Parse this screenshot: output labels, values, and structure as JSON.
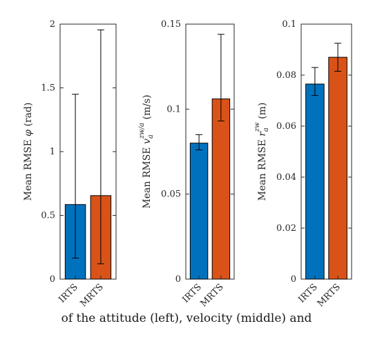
{
  "chart_data": [
    {
      "type": "bar",
      "categories": [
        "IRTS",
        "MRTS"
      ],
      "values": [
        0.585,
        0.655
      ],
      "error_low": [
        0.165,
        0.12
      ],
      "error_high": [
        1.45,
        1.955
      ],
      "ylim": [
        0,
        2
      ],
      "yticks": [
        0,
        0.5,
        1,
        1.5,
        2
      ],
      "ytick_labels": [
        "0",
        "0.5",
        "1",
        "1.5",
        "2"
      ],
      "ylabel": "Mean RMSE φ (rad)",
      "colors": [
        "#0072BD",
        "#D95319"
      ]
    },
    {
      "type": "bar",
      "categories": [
        "IRTS",
        "MRTS"
      ],
      "values": [
        0.08,
        0.106
      ],
      "error_low": [
        0.076,
        0.093
      ],
      "error_high": [
        0.085,
        0.144
      ],
      "ylim": [
        0,
        0.15
      ],
      "yticks": [
        0,
        0.05,
        0.1,
        0.15
      ],
      "ytick_labels": [
        "0",
        "0.05",
        "0.1",
        "0.15"
      ],
      "ylabel": "Mean RMSE v_a^{zw/a} (m/s)",
      "colors": [
        "#0072BD",
        "#D95319"
      ]
    },
    {
      "type": "bar",
      "categories": [
        "IRTS",
        "MRTS"
      ],
      "values": [
        0.0765,
        0.087
      ],
      "error_low": [
        0.072,
        0.0815
      ],
      "error_high": [
        0.083,
        0.0925
      ],
      "ylim": [
        0,
        0.1
      ],
      "yticks": [
        0,
        0.02,
        0.04,
        0.06,
        0.08,
        0.1
      ],
      "ytick_labels": [
        "0",
        "0.02",
        "0.04",
        "0.06",
        "0.08",
        "0.1"
      ],
      "ylabel": "Mean RMSE r_a^{zw} (m)",
      "colors": [
        "#0072BD",
        "#D95319"
      ]
    }
  ],
  "caption": "of the attitude (left), velocity (middle) and"
}
